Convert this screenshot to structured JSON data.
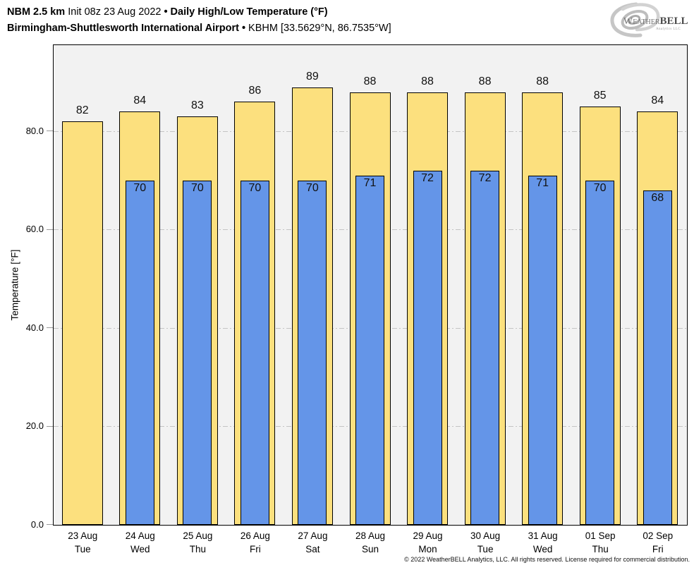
{
  "header": {
    "model": "NBM 2.5 km",
    "init": "Init 08z 23 Aug 2022",
    "separator": "•",
    "product": "Daily High/Low Temperature (°F)",
    "station": "Birmingham-Shuttlesworth International Airport",
    "station_meta": "KBHM [33.5629°N, 86.7535°W]"
  },
  "logo": {
    "weather": "Weather",
    "bell": "BELL",
    "analytics": "Analytics LLC"
  },
  "chart_data": {
    "type": "bar",
    "title": "Daily High/Low Temperature (°F)",
    "ylabel": "Temperature [°F]",
    "ylim": [
      0,
      97.4
    ],
    "yticks": [
      0,
      20,
      40,
      60,
      80
    ],
    "grid": {
      "horizontal": true,
      "style": "dash-dot",
      "color": "#c4c4c4"
    },
    "legend": "none",
    "plot_background": "#f2f2f2",
    "bar_edge_color": "#000000",
    "categories": [
      {
        "date": "23 Aug",
        "day": "Tue"
      },
      {
        "date": "24 Aug",
        "day": "Wed"
      },
      {
        "date": "25 Aug",
        "day": "Thu"
      },
      {
        "date": "26 Aug",
        "day": "Fri"
      },
      {
        "date": "27 Aug",
        "day": "Sat"
      },
      {
        "date": "28 Aug",
        "day": "Sun"
      },
      {
        "date": "29 Aug",
        "day": "Mon"
      },
      {
        "date": "30 Aug",
        "day": "Tue"
      },
      {
        "date": "31 Aug",
        "day": "Wed"
      },
      {
        "date": "01 Sep",
        "day": "Thu"
      },
      {
        "date": "02 Sep",
        "day": "Fri"
      }
    ],
    "series": [
      {
        "name": "Daily High",
        "color": "#fce07e",
        "values": [
          82,
          84,
          83,
          86,
          89,
          88,
          88,
          88,
          88,
          85,
          84
        ]
      },
      {
        "name": "Daily Low",
        "color": "#6495e8",
        "values": [
          null,
          70,
          70,
          70,
          70,
          71,
          72,
          72,
          71,
          70,
          68
        ]
      }
    ]
  },
  "footer": {
    "copyright": "© 2022 WeatherBELL Analytics, LLC. All rights reserved. License required for commercial distribution."
  }
}
